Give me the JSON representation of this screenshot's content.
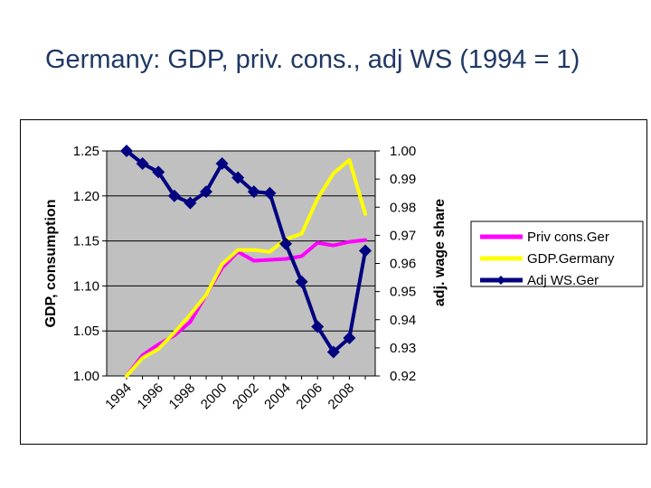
{
  "slide": {
    "title": "Germany: GDP, priv. cons., adj WS (1994 = 1)"
  },
  "chart_data": {
    "type": "line",
    "title": "Germany: GDP, priv. cons., adj WS (1994 = 1)",
    "x": [
      1994,
      1995,
      1996,
      1997,
      1998,
      1999,
      2000,
      2001,
      2002,
      2003,
      2004,
      2005,
      2006,
      2007,
      2008,
      2009
    ],
    "x_tick_labels": [
      "1994",
      "1996",
      "1998",
      "2000",
      "2002",
      "2004",
      "2006",
      "2008"
    ],
    "x_tick_years": [
      1994,
      1996,
      1998,
      2000,
      2002,
      2004,
      2006,
      2008
    ],
    "ylabel": "GDP, consumption",
    "ylim": [
      1.0,
      1.25
    ],
    "y_ticks": [
      "1.00",
      "1.05",
      "1.10",
      "1.15",
      "1.20",
      "1.25"
    ],
    "y2label": "adj. wage share",
    "y2lim": [
      0.92,
      1.0
    ],
    "y2_ticks": [
      "0.92",
      "0.93",
      "0.94",
      "0.95",
      "0.96",
      "0.97",
      "0.98",
      "0.99",
      "1.00"
    ],
    "plot_background": "#C0C0C0",
    "grid": true,
    "legend_position": "right",
    "series": [
      {
        "name": "Priv cons.Ger",
        "axis": "left",
        "color": "#FF00FF",
        "marker": "none",
        "values": [
          1.0,
          1.023,
          1.035,
          1.045,
          1.06,
          1.09,
          1.12,
          1.138,
          1.128,
          1.129,
          1.13,
          1.133,
          1.148,
          1.145,
          1.149,
          1.151
        ]
      },
      {
        "name": "GDP.Germany",
        "axis": "left",
        "color": "#FFFF00",
        "marker": "none",
        "values": [
          1.0,
          1.02,
          1.03,
          1.048,
          1.068,
          1.09,
          1.124,
          1.14,
          1.14,
          1.138,
          1.152,
          1.158,
          1.197,
          1.225,
          1.24,
          1.18
        ]
      },
      {
        "name": "Adj WS.Ger",
        "axis": "right",
        "color": "#000080",
        "marker": "diamond",
        "values": [
          1.0,
          0.9955,
          0.9925,
          0.984,
          0.9815,
          0.9855,
          0.9955,
          0.9905,
          0.9855,
          0.985,
          0.967,
          0.9535,
          0.9375,
          0.9285,
          0.9335,
          0.9645
        ]
      }
    ]
  }
}
